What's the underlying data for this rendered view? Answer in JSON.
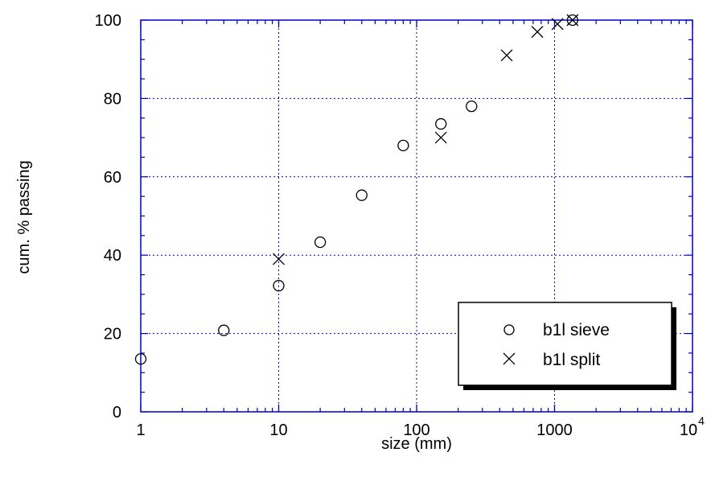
{
  "chart_data": {
    "type": "scatter",
    "title": "",
    "xlabel": "size (mm)",
    "ylabel": "cum. % passing",
    "xscale": "log",
    "xlim": [
      1,
      10000
    ],
    "ylim": [
      0,
      100
    ],
    "x_ticks": [
      {
        "value": 1,
        "label": "1"
      },
      {
        "value": 10,
        "label": "10"
      },
      {
        "value": 100,
        "label": "100"
      },
      {
        "value": 1000,
        "label": "1000"
      },
      {
        "value": 10000,
        "label": "10",
        "exponent": "4"
      }
    ],
    "y_ticks": [
      0,
      20,
      40,
      60,
      80,
      100
    ],
    "grid": true,
    "grid_color": "#0000c8",
    "legend_position": "bottom-right",
    "series": [
      {
        "name": "b1l sieve",
        "marker": "circle",
        "points": [
          {
            "x": 1,
            "y": 13.5
          },
          {
            "x": 4,
            "y": 20.8
          },
          {
            "x": 10,
            "y": 32.2
          },
          {
            "x": 20,
            "y": 43.3
          },
          {
            "x": 40,
            "y": 55.3
          },
          {
            "x": 80,
            "y": 68.0
          },
          {
            "x": 150,
            "y": 73.5
          },
          {
            "x": 250,
            "y": 78.0
          },
          {
            "x": 1350,
            "y": 100.0
          }
        ]
      },
      {
        "name": "b1l split",
        "marker": "cross",
        "points": [
          {
            "x": 10,
            "y": 39.0
          },
          {
            "x": 150,
            "y": 70.0
          },
          {
            "x": 450,
            "y": 91.0
          },
          {
            "x": 750,
            "y": 97.0
          },
          {
            "x": 1050,
            "y": 99.0
          },
          {
            "x": 1350,
            "y": 100.0
          }
        ]
      }
    ]
  }
}
